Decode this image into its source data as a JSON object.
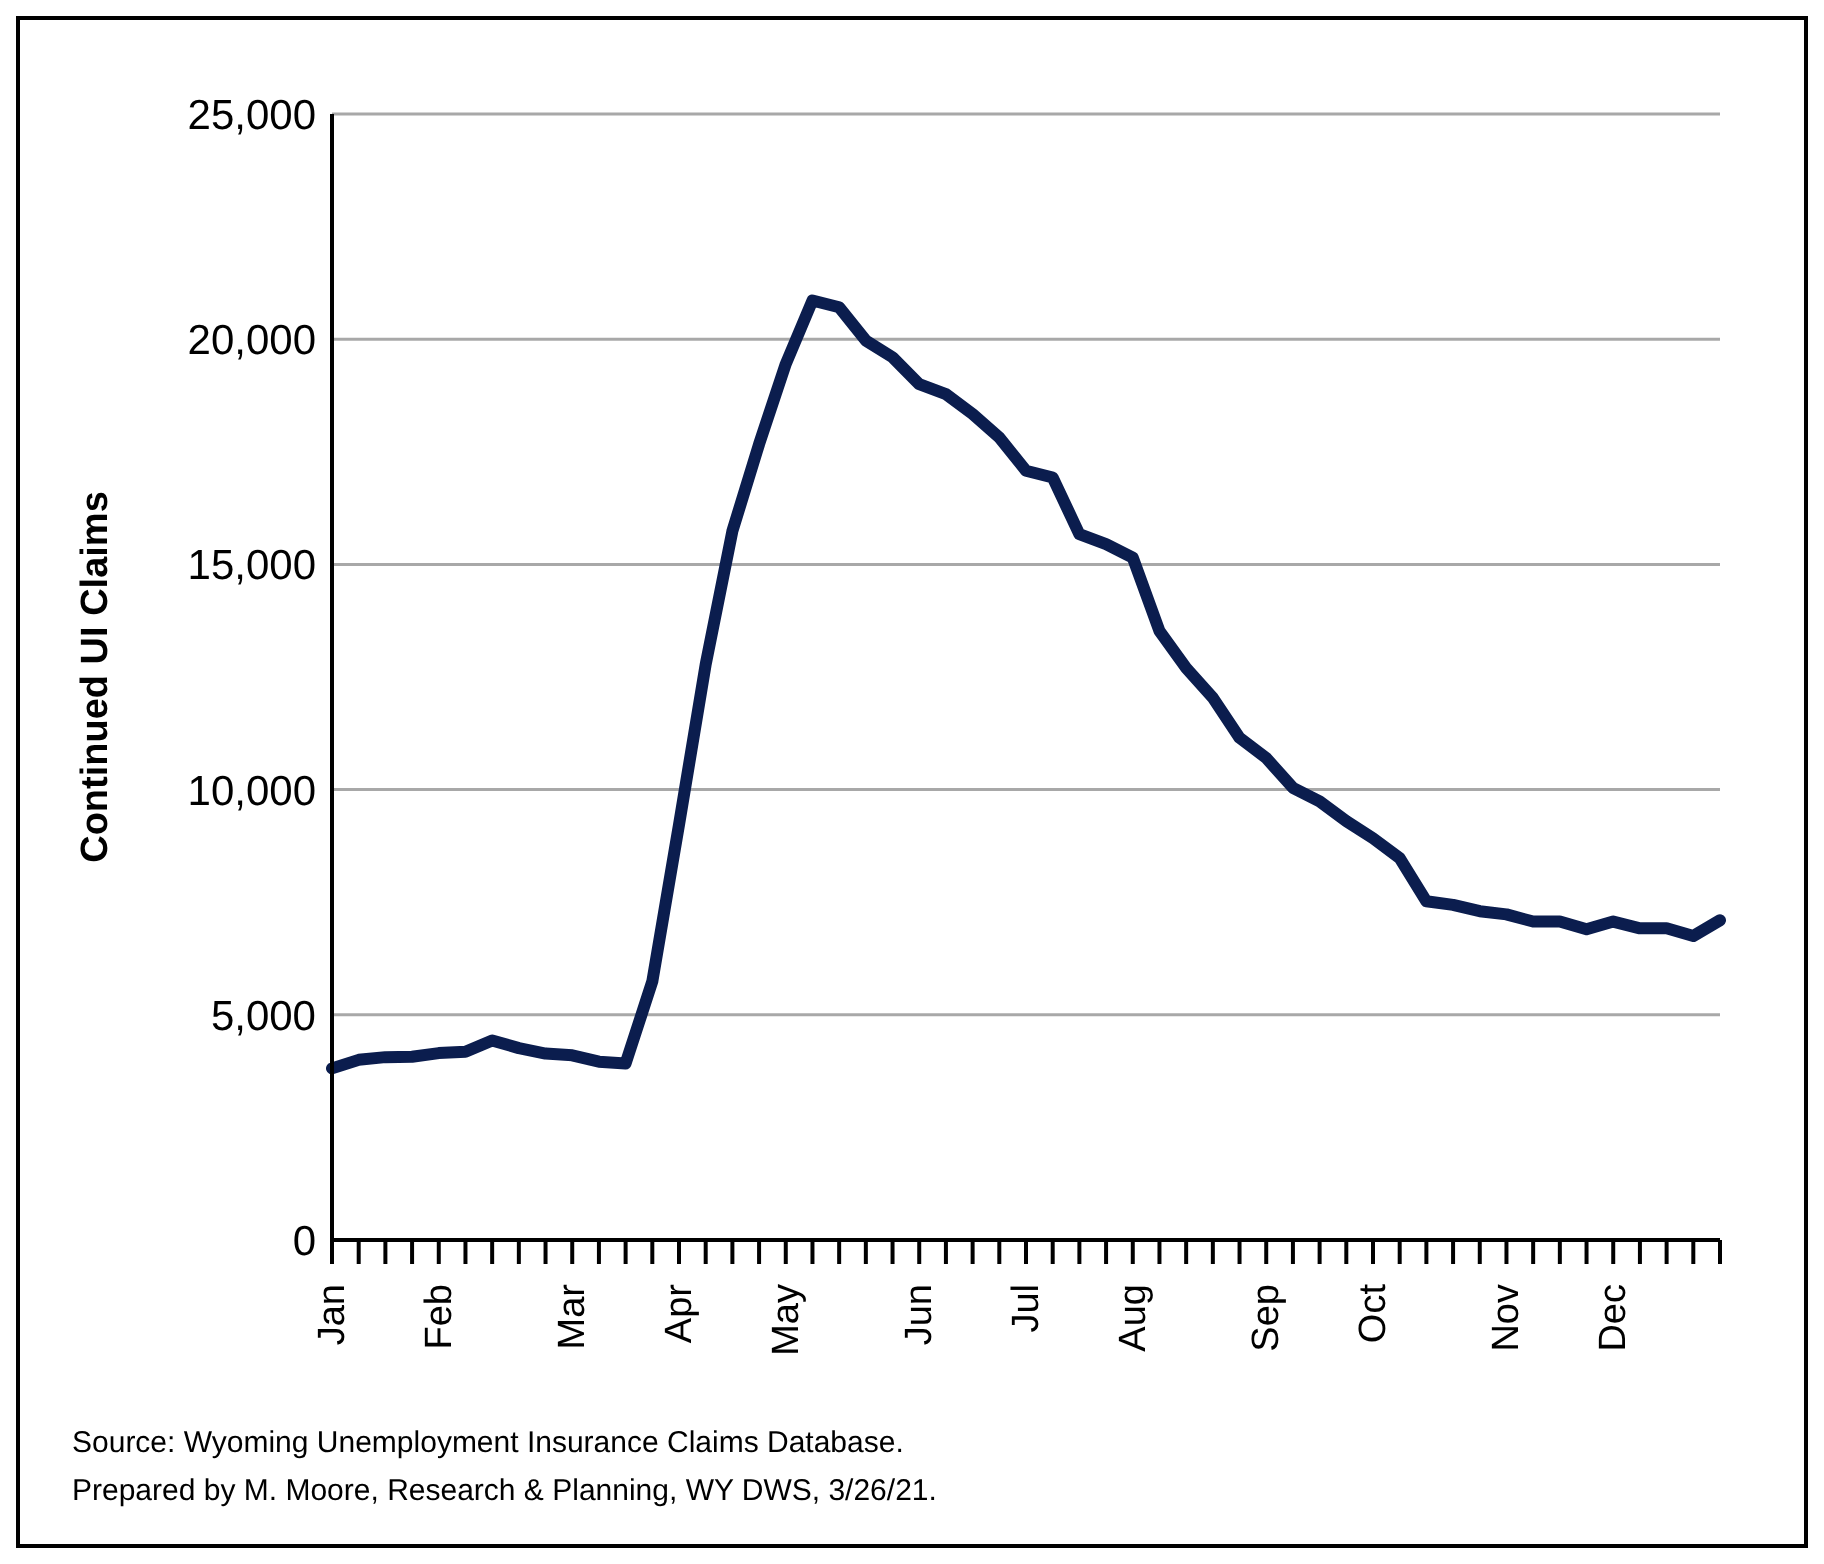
{
  "chart_data": {
    "type": "line",
    "ylabel": "Continued UI Claims",
    "categories": [
      "Jan",
      null,
      null,
      null,
      "Feb",
      null,
      null,
      null,
      null,
      "Mar",
      null,
      null,
      null,
      "Apr",
      null,
      null,
      null,
      "May",
      null,
      null,
      null,
      null,
      "Jun",
      null,
      null,
      null,
      "Jul",
      null,
      null,
      null,
      "Aug",
      null,
      null,
      null,
      null,
      "Sep",
      null,
      null,
      null,
      "Oct",
      null,
      null,
      null,
      null,
      "Nov",
      null,
      null,
      null,
      "Dec",
      null,
      null,
      null,
      null
    ],
    "series": [
      {
        "color": "#0b1d4e",
        "values": [
          3810,
          4000,
          4060,
          4070,
          4150,
          4180,
          4430,
          4260,
          4140,
          4100,
          3960,
          3920,
          5740,
          9220,
          12780,
          15740,
          17670,
          19450,
          20860,
          20710,
          19970,
          19600,
          19000,
          18780,
          18340,
          17820,
          17080,
          16930,
          15670,
          15450,
          15150,
          13520,
          12700,
          12040,
          11150,
          10700,
          10040,
          9740,
          9300,
          8920,
          8480,
          7520,
          7440,
          7300,
          7230,
          7070,
          7070,
          6900,
          7070,
          6920,
          6920,
          6750,
          7100
        ]
      }
    ],
    "ylim": [
      0,
      25000
    ],
    "yticks": [
      {
        "value": 0,
        "label": "0"
      },
      {
        "value": 5000,
        "label": "5,000"
      },
      {
        "value": 10000,
        "label": "10,000"
      },
      {
        "value": 15000,
        "label": "15,000"
      },
      {
        "value": 20000,
        "label": "20,000"
      },
      {
        "value": 25000,
        "label": "25,000"
      }
    ],
    "grid": "y",
    "legend": false,
    "marker": "none",
    "line_style": "solid",
    "annotations": [
      "Source: Wyoming Unemployment Insurance Claims Database.",
      "Prepared by M. Moore, Research & Planning, WY DWS, 3/26/21."
    ]
  }
}
